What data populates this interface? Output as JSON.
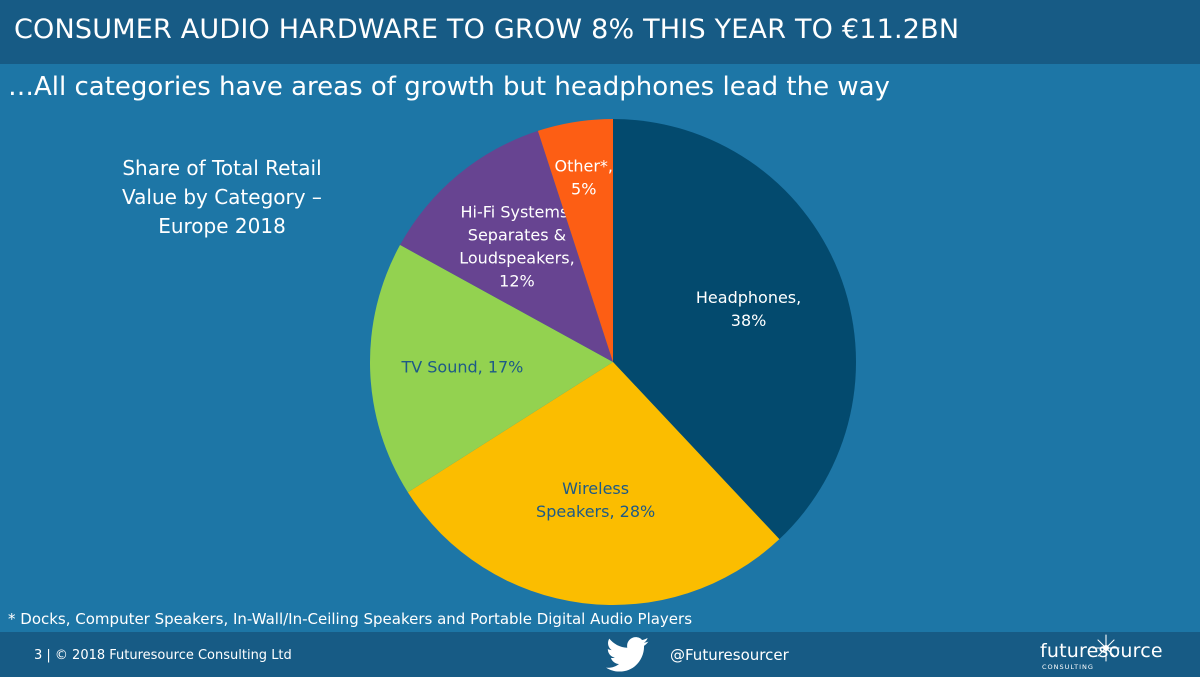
{
  "header": {
    "title": "CONSUMER AUDIO HARDWARE TO GROW 8% THIS YEAR TO €11.2BN",
    "subtitle": "…All categories have areas of growth but headphones lead the way"
  },
  "chart_data": {
    "type": "pie",
    "title_lines": [
      "Share of Total Retail",
      "Value by Category –",
      "Europe 2018"
    ],
    "slices": [
      {
        "label_lines": [
          "Headphones,",
          "38%"
        ],
        "value": 38,
        "color": "#034a6e",
        "label_color": "#ffffff"
      },
      {
        "label_lines": [
          "Wireless",
          "Speakers, 28%"
        ],
        "value": 28,
        "color": "#fbbd00",
        "label_color": "#1d5a87"
      },
      {
        "label_lines": [
          "TV Sound, 17%"
        ],
        "value": 17,
        "color": "#93d250",
        "label_color": "#1d5a87"
      },
      {
        "label_lines": [
          "Hi-Fi Systems,",
          "Separates &",
          "Loudspeakers,",
          "12%"
        ],
        "value": 12,
        "color": "#674491",
        "label_color": "#ffffff"
      },
      {
        "label_lines": [
          "Other*,",
          "5%"
        ],
        "value": 5,
        "color": "#fd5e14",
        "label_color": "#ffffff"
      }
    ],
    "start": "12 o'clock",
    "direction": "clockwise"
  },
  "footnote": "* Docks, Computer Speakers,  In-Wall/In-Ceiling Speakers and Portable Digital Audio Players",
  "footer": {
    "page_info": "3  |  © 2018 Futuresource Consulting Ltd",
    "twitter_handle": "@Futuresourcer",
    "logo_text": "futuresource",
    "logo_subtext": "CONSULTING"
  },
  "colors": {
    "background": "#1d76a6",
    "bars": "#175b85"
  },
  "icons": {
    "social": "twitter-bird-icon",
    "logo_mark": "star-burst-icon"
  }
}
